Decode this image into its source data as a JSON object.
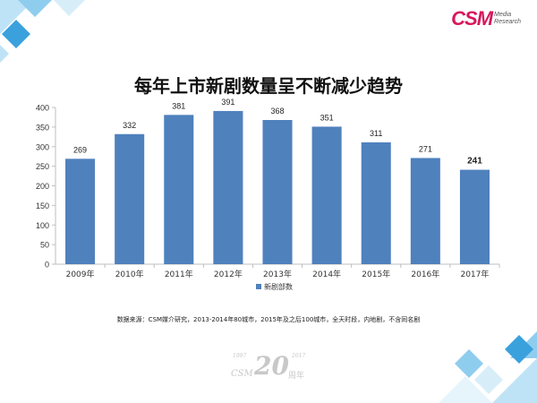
{
  "logo": {
    "main": "CSM",
    "sub_line1": "Media",
    "sub_line2": "Research"
  },
  "title": "每年上市新剧数量呈不断减少趋势",
  "source_note": "数据来源：CSM媒介研究，2013-2014年80城市，2015年及之后100城市，全天时段，内地剧，不含同名剧",
  "anniversary_badge": {
    "year_start": "1997",
    "year_end": "2017",
    "brand": "CSM",
    "number": "20",
    "suffix": "周年"
  },
  "colors": {
    "bar": "#4f81bd",
    "accent_logo": "#d6185d",
    "deco_blue": "#3aa1dd",
    "deco_light": "#bfe3f6"
  },
  "chart_data": {
    "type": "bar",
    "categories": [
      "2009年",
      "2010年",
      "2011年",
      "2012年",
      "2013年",
      "2014年",
      "2015年",
      "2016年",
      "2017年"
    ],
    "series": [
      {
        "name": "新剧部数",
        "values": [
          269,
          332,
          381,
          391,
          368,
          351,
          311,
          271,
          241
        ]
      }
    ],
    "data_labels": [
      "269",
      "332",
      "381",
      "391",
      "368",
      "351",
      "311",
      "271",
      "241"
    ],
    "yticks": [
      "0",
      "50",
      "100",
      "150",
      "200",
      "250",
      "300",
      "350",
      "400"
    ],
    "ylim": [
      0,
      400
    ],
    "grid": false,
    "legend_position": "bottom",
    "xlabel": "",
    "ylabel": ""
  }
}
